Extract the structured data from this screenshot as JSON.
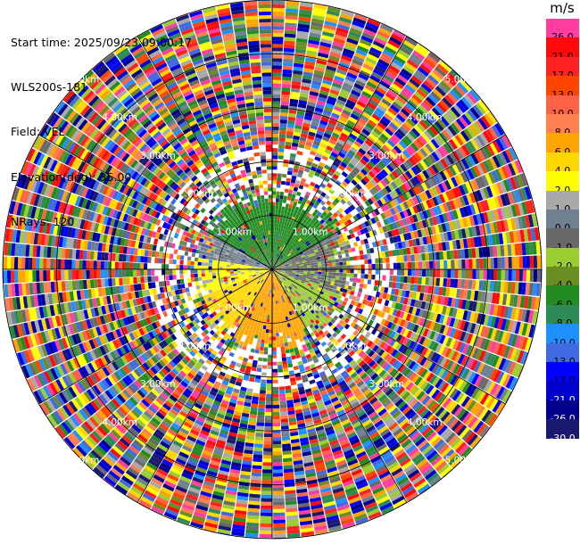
{
  "header": {
    "start_time": "Start time: 2025/09/23 09:00:17",
    "instrument": "WLS200s-181",
    "field": "Field: VEL",
    "elevation": "Elevation(deg): 35.00",
    "nrays": "NRays: 120"
  },
  "colorbar": {
    "unit": "m/s",
    "levels": [
      {
        "label": "26.0",
        "color": "#ff3ea0",
        "text_color": "#000000"
      },
      {
        "label": "21.0",
        "color": "#ff0a0a",
        "text_color": "#000000"
      },
      {
        "label": "17.0",
        "color": "#ff2020",
        "text_color": "#000000"
      },
      {
        "label": "13.0",
        "color": "#ff4500",
        "text_color": "#000000"
      },
      {
        "label": "10.0",
        "color": "#ff6347",
        "text_color": "#000000"
      },
      {
        "label": "8.0",
        "color": "#ff7f50",
        "text_color": "#000000"
      },
      {
        "label": "6.0",
        "color": "#ffa500",
        "text_color": "#000000"
      },
      {
        "label": "4.0",
        "color": "#ffd700",
        "text_color": "#000000"
      },
      {
        "label": "2.0",
        "color": "#ffff00",
        "text_color": "#000000"
      },
      {
        "label": "1.0",
        "color": "#a9a9a9",
        "text_color": "#000000"
      },
      {
        "label": "0.0",
        "color": "#708090",
        "text_color": "#000000"
      },
      {
        "label": "-1.0",
        "color": "#696969",
        "text_color": "#000000"
      },
      {
        "label": "-2.0",
        "color": "#9acd32",
        "text_color": "#000000"
      },
      {
        "label": "-4.0",
        "color": "#6b8e23",
        "text_color": "#000000"
      },
      {
        "label": "-6.0",
        "color": "#228b22",
        "text_color": "#000000"
      },
      {
        "label": "-8.0",
        "color": "#2e8b57",
        "text_color": "#000000"
      },
      {
        "label": "-10.0",
        "color": "#1e90ff",
        "text_color": "#000000"
      },
      {
        "label": "-13.0",
        "color": "#4169e1",
        "text_color": "#000000"
      },
      {
        "label": "-17.0",
        "color": "#0000ff",
        "text_color": "#000000"
      },
      {
        "label": "-21.0",
        "color": "#0000cd",
        "text_color": "#ffffff"
      },
      {
        "label": "-26.0",
        "color": "#00008b",
        "text_color": "#ffffff"
      },
      {
        "label": "-30.0",
        "color": "#191970",
        "text_color": "#ffffff"
      }
    ]
  },
  "chart_data": {
    "type": "heatmap",
    "projection": "polar PPI",
    "field": "VEL",
    "units": "m/s",
    "nrays": 120,
    "max_range_km": 5.0,
    "range_rings_km": [
      1,
      2,
      3,
      4,
      5
    ],
    "range_ring_labels": [
      "1.00km",
      "2.00km",
      "3.00km",
      "4.00km",
      "5.00km"
    ],
    "ring_label_azimuths_deg": [
      45,
      135,
      225,
      315
    ],
    "spokes_deg": [
      0,
      30,
      60,
      90,
      120,
      150,
      180,
      210,
      240,
      270,
      300,
      330
    ],
    "near_field_sectors": [
      {
        "from_deg": 300,
        "to_deg": 60,
        "value": -6.0
      },
      {
        "from_deg": 60,
        "to_deg": 110,
        "value": -1.0
      },
      {
        "from_deg": 110,
        "to_deg": 150,
        "value": -2.0
      },
      {
        "from_deg": 150,
        "to_deg": 210,
        "value": 6.0
      },
      {
        "from_deg": 210,
        "to_deg": 250,
        "value": 4.0
      },
      {
        "from_deg": 250,
        "to_deg": 280,
        "value": 2.0
      },
      {
        "from_deg": 280,
        "to_deg": 300,
        "value": 0.0
      }
    ],
    "near_field_max_km": 1.35,
    "far_field": "noise, values span full colorbar range"
  }
}
